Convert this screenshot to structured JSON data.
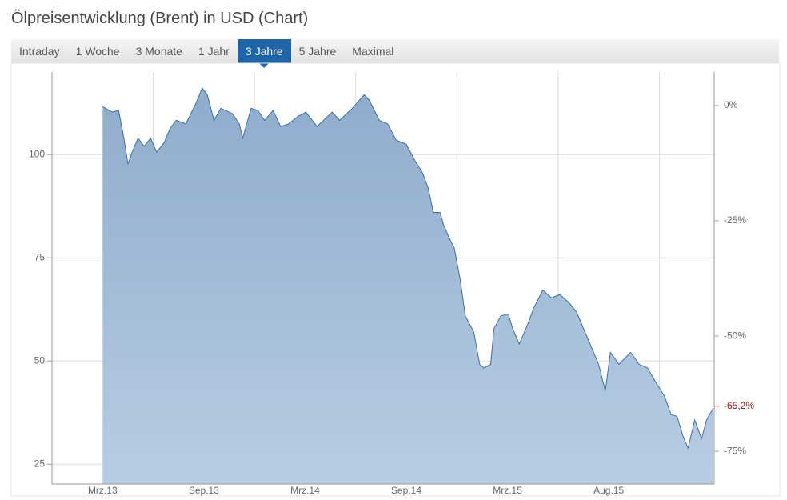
{
  "title": "Ölpreisentwicklung (Brent) in USD (Chart)",
  "tabs": [
    "Intraday",
    "1 Woche",
    "3 Monate",
    "1 Jahr",
    "3 Jahre",
    "5 Jahre",
    "Maximal"
  ],
  "selected_tab": 4,
  "chart_data": {
    "type": "area",
    "xlim": [
      -1,
      38.25
    ],
    "xticks": [
      {
        "value": 2,
        "label": "Mrz.13"
      },
      {
        "value": 8,
        "label": "Sep.13"
      },
      {
        "value": 14,
        "label": "Mrz.14"
      },
      {
        "value": 20,
        "label": "Sep.14"
      },
      {
        "value": 26,
        "label": "Mrz.15"
      },
      {
        "value": 32,
        "label": "Aug.15"
      }
    ],
    "xgrid": [
      5,
      11,
      17,
      23,
      29,
      35
    ],
    "ylim": [
      20.2,
      120
    ],
    "yticks": [
      25,
      50,
      75,
      100
    ],
    "y2lim": [
      -82.1,
      7.3
    ],
    "y2ticks": [
      {
        "value": 0,
        "label": "0%"
      },
      {
        "value": -25,
        "label": "-25%"
      },
      {
        "value": -50,
        "label": "-50%"
      },
      {
        "value": -75,
        "label": "-75%"
      }
    ],
    "annotation": {
      "value": -65.2,
      "label": "-65,2%"
    },
    "annotation_color": "#a01010",
    "grid": true,
    "series": [
      {
        "color": "#3a6ea5",
        "x": [
          2.0,
          2.57,
          2.95,
          3.28,
          3.5,
          3.75,
          4.1,
          4.46,
          4.84,
          5.2,
          5.65,
          6.0,
          6.36,
          6.93,
          7.55,
          7.9,
          8.2,
          8.6,
          9.0,
          9.7,
          10.1,
          10.3,
          10.8,
          11.2,
          11.6,
          12.1,
          12.55,
          13.0,
          13.6,
          14.05,
          14.7,
          15.1,
          15.6,
          16.05,
          16.8,
          17.5,
          17.8,
          18.4,
          18.9,
          19.4,
          20.0,
          20.5,
          20.95,
          21.3,
          21.6,
          22.0,
          22.2,
          22.6,
          22.85,
          23.2,
          23.5,
          24.0,
          24.35,
          24.6,
          25.0,
          25.2,
          25.6,
          26.05,
          26.3,
          26.7,
          27.2,
          27.55,
          28.1,
          28.6,
          29.1,
          29.65,
          30.1,
          30.5,
          31.1,
          31.4,
          31.8,
          32.1,
          32.6,
          33.3,
          33.8,
          34.3,
          34.8,
          35.3,
          35.7,
          36.05,
          36.4,
          36.7,
          37.1,
          37.5,
          37.8,
          38.2
        ],
        "values": [
          111.6,
          110.3,
          110.7,
          103.5,
          97.7,
          100.6,
          104,
          102,
          104,
          100.6,
          102.9,
          106.4,
          108.3,
          107.4,
          112.6,
          116.1,
          114.5,
          108.3,
          111.2,
          109.9,
          107.4,
          104,
          111.2,
          110.7,
          108.3,
          110.7,
          106.8,
          107.4,
          109.3,
          110.3,
          106.8,
          108.3,
          110.3,
          108.3,
          111.2,
          114.5,
          113.2,
          108.3,
          107.4,
          103.5,
          102.5,
          98.6,
          95.7,
          91.9,
          86,
          86,
          83.1,
          79.3,
          77.3,
          69.6,
          60.9,
          57,
          49.2,
          48.3,
          49.2,
          57.9,
          60.9,
          61.4,
          57.9,
          54.1,
          58.9,
          62.8,
          67.2,
          65.3,
          66.1,
          64.1,
          61.8,
          57.9,
          52.1,
          49.2,
          42.8,
          52.1,
          49.2,
          52.1,
          49.2,
          48.3,
          44.8,
          41.5,
          37,
          36.6,
          31.8,
          28.9,
          35.7,
          31.2,
          35.7,
          38.6
        ]
      }
    ]
  }
}
